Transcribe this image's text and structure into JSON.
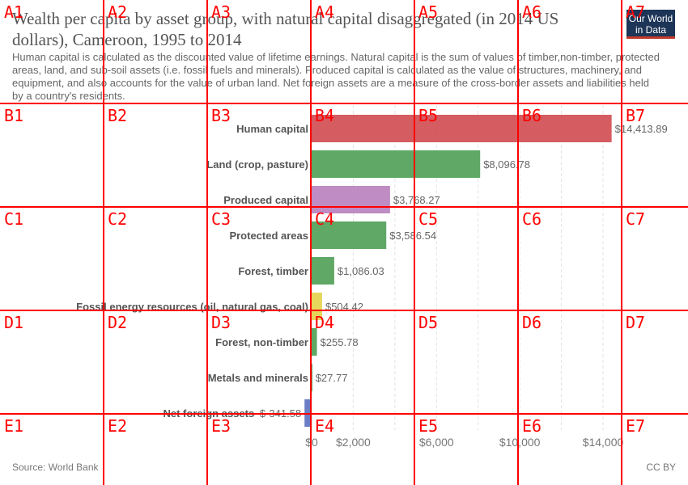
{
  "header": {
    "title": "Wealth per capita by asset group, with natural capital disaggregated (in 2014 US dollars), Cameroon, 1995 to 2014",
    "subtitle": "Human capital is calculated as the discounted value of lifetime earnings. Natural capital is the sum of values of timber,non-timber, protected areas, land, and sub-soil assets (i.e. fossil fuels and minerals). Produced capital is calculated as the value of structures, machinery, and equipment, and also accounts for the value of urban land. Net foreign assets are a measure of the cross-border assets and liabilities held by a country's residents.",
    "logo_text": "Our World in Data"
  },
  "footer": {
    "source": "Source: World Bank",
    "license": "CC BY"
  },
  "chart_data": {
    "type": "bar",
    "orientation": "horizontal",
    "categories": [
      "Human capital",
      "Land (crop, pasture)",
      "Produced capital",
      "Protected areas",
      "Forest, timber",
      "Fossil energy resources (oil, natural gas, coal)",
      "Forest, non-timber",
      "Metals and minerals",
      "Net foreign assets"
    ],
    "values": [
      14413.89,
      8096.78,
      3768.27,
      3586.54,
      1086.03,
      504.42,
      255.78,
      27.77,
      -341.58
    ],
    "value_labels": [
      "$14,413.89",
      "$8,096.78",
      "$3,768.27",
      "$3,586.54",
      "$1,086.03",
      "$504.42",
      "$255.78",
      "$27.77",
      "$-341.58"
    ],
    "colors": [
      "#d04a4f",
      "#4f9e54",
      "#b87fbd",
      "#4f9e54",
      "#4f9e54",
      "#e3d34a",
      "#4f9e54",
      "#4f9e54",
      "#5b6fbe"
    ],
    "xlim": [
      -341.58,
      15000
    ],
    "x_ticks": [
      0,
      2000,
      6000,
      10000,
      14000
    ],
    "x_tick_labels": [
      "$0",
      "$2,000",
      "$6,000",
      "$10,000",
      "$14,000"
    ],
    "grid": true
  },
  "overlay": {
    "color": "#ff0000",
    "columns": [
      "1",
      "2",
      "3",
      "4",
      "5",
      "6",
      "7"
    ],
    "rows": [
      "A",
      "B",
      "C",
      "D",
      "E"
    ]
  }
}
